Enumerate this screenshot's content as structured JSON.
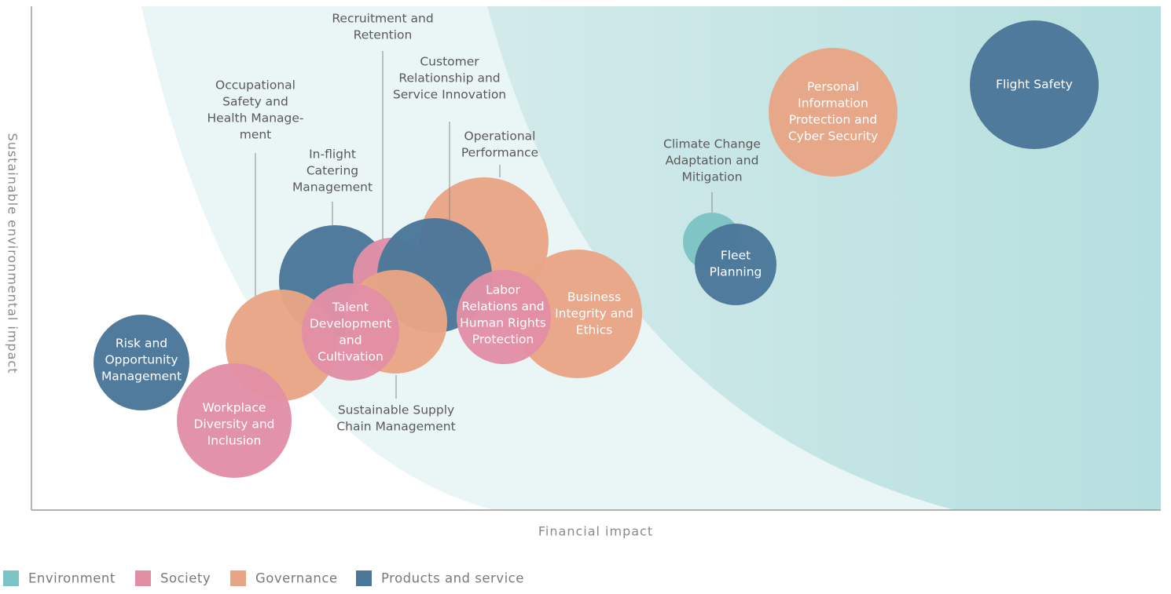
{
  "axes": {
    "x_label": "Financial impact",
    "y_label": "Sustainable environmental impact"
  },
  "legend": [
    {
      "label": "Environment",
      "color": "#7cc3c3"
    },
    {
      "label": "Society",
      "color": "#e28fa6"
    },
    {
      "label": "Governance",
      "color": "#e8a585"
    },
    {
      "label": "Products and service",
      "color": "#4b7799"
    }
  ],
  "nodes": [
    {
      "category": 2,
      "label": [
        "Operational",
        "Performance"
      ]
    },
    {
      "category": 3,
      "label": [
        "In-flight",
        "Catering",
        "Management"
      ]
    },
    {
      "category": 1,
      "label": [
        "Recruitment and",
        "Retention"
      ]
    },
    {
      "category": 3,
      "label": [
        "Customer",
        "Relationship and",
        "Service Innovation"
      ]
    },
    {
      "category": 2,
      "label": [
        "Occupational",
        "Safety and",
        "Health Manage-",
        "ment"
      ]
    },
    {
      "category": 2,
      "label": [
        "Sustainable Supply",
        "Chain Management"
      ]
    },
    {
      "category": 1,
      "label": [
        "Talent",
        "Development",
        "and",
        "Cultivation"
      ]
    },
    {
      "category": 2,
      "label": [
        "Business",
        "Integrity and",
        "Ethics"
      ]
    },
    {
      "category": 1,
      "label": [
        "Labor",
        "Relations and",
        "Human Rights",
        "Protection"
      ]
    },
    {
      "category": 3,
      "label": [
        "Risk and",
        "Opportunity",
        "Management"
      ]
    },
    {
      "category": 1,
      "label": [
        "Workplace",
        "Diversity and",
        "Inclusion"
      ]
    },
    {
      "category": 0,
      "label": [
        "Climate Change",
        "Adaptation and",
        "Mitigation"
      ]
    },
    {
      "category": 3,
      "label": [
        "Fleet",
        "Planning"
      ]
    },
    {
      "category": 2,
      "label": [
        "Personal",
        "Information",
        "Protection and",
        "Cyber Security"
      ]
    },
    {
      "category": 3,
      "label": [
        "Flight Safety"
      ]
    }
  ]
}
